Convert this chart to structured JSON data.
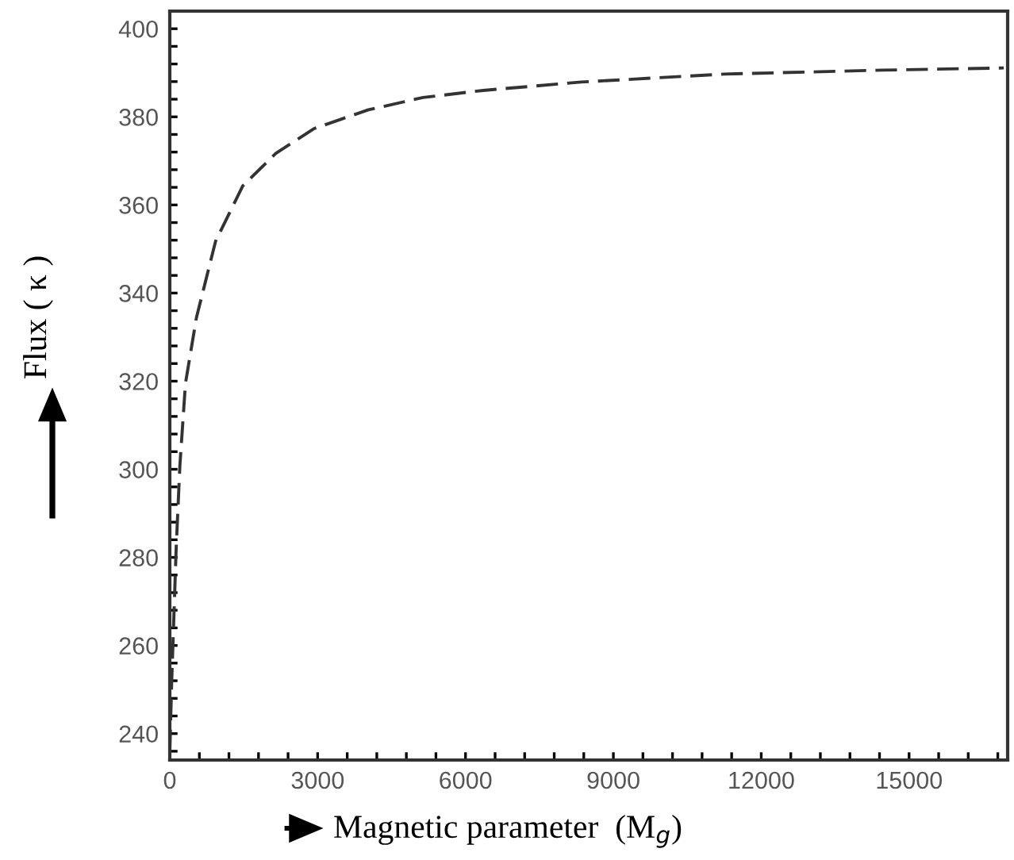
{
  "chart_data": {
    "type": "line",
    "xlabel": "Magnetic parameter  (M$_{g}$)",
    "ylabel": "Flux ( κ )",
    "xlim": [
      0,
      17000
    ],
    "ylim": [
      234,
      404
    ],
    "xticks": [
      0,
      {
        "value": 600,
        "label": null
      },
      {
        "value": 1200,
        "label": null
      },
      {
        "value": 1800,
        "label": null
      },
      {
        "value": 2400,
        "label": null
      },
      3000,
      {
        "value": 3600,
        "label": null
      },
      {
        "value": 4200,
        "label": null
      },
      {
        "value": 4800,
        "label": null
      },
      {
        "value": 5400,
        "label": null
      },
      6000,
      {
        "value": 6600,
        "label": null
      },
      {
        "value": 7200,
        "label": null
      },
      {
        "value": 7800,
        "label": null
      },
      {
        "value": 8400,
        "label": null
      },
      9000,
      {
        "value": 9600,
        "label": null
      },
      {
        "value": 10200,
        "label": null
      },
      {
        "value": 10800,
        "label": null
      },
      {
        "value": 11400,
        "label": null
      },
      12000,
      {
        "value": 12600,
        "label": null
      },
      {
        "value": 13200,
        "label": null
      },
      {
        "value": 13800,
        "label": null
      },
      {
        "value": 14400,
        "label": null
      },
      15000,
      {
        "value": 15600,
        "label": null
      },
      {
        "value": 16200,
        "label": null
      },
      {
        "value": 16800,
        "label": null
      }
    ],
    "yticks": [
      {
        "value": 236,
        "label": null
      },
      240,
      {
        "value": 244,
        "label": null
      },
      {
        "value": 248,
        "label": null
      },
      {
        "value": 252,
        "label": null
      },
      {
        "value": 256,
        "label": null
      },
      260,
      {
        "value": 264,
        "label": null
      },
      {
        "value": 268,
        "label": null
      },
      {
        "value": 272,
        "label": null
      },
      {
        "value": 276,
        "label": null
      },
      280,
      {
        "value": 284,
        "label": null
      },
      {
        "value": 288,
        "label": null
      },
      {
        "value": 292,
        "label": null
      },
      {
        "value": 296,
        "label": null
      },
      300,
      {
        "value": 304,
        "label": null
      },
      {
        "value": 308,
        "label": null
      },
      {
        "value": 312,
        "label": null
      },
      {
        "value": 316,
        "label": null
      },
      320,
      {
        "value": 324,
        "label": null
      },
      {
        "value": 328,
        "label": null
      },
      {
        "value": 332,
        "label": null
      },
      {
        "value": 336,
        "label": null
      },
      340,
      {
        "value": 344,
        "label": null
      },
      {
        "value": 348,
        "label": null
      },
      {
        "value": 352,
        "label": null
      },
      {
        "value": 356,
        "label": null
      },
      360,
      {
        "value": 364,
        "label": null
      },
      {
        "value": 368,
        "label": null
      },
      {
        "value": 372,
        "label": null
      },
      {
        "value": 376,
        "label": null
      },
      380,
      {
        "value": 384,
        "label": null
      },
      {
        "value": 388,
        "label": null
      },
      {
        "value": 392,
        "label": null
      },
      {
        "value": 396,
        "label": null
      },
      400
    ],
    "grid": false,
    "legend": false,
    "marker": "none",
    "line_style": "dashed",
    "series": [
      {
        "color": "#333333",
        "x": [
          0,
          40,
          130,
          205,
          318,
          540,
          930,
          1480,
          2150,
          2920,
          4030,
          5140,
          6360,
          8350,
          11240,
          14460,
          16920
        ],
        "values": [
          236,
          252.4,
          282.2,
          300.9,
          319.5,
          334.4,
          351.8,
          364.3,
          371.7,
          377.3,
          381.6,
          384.4,
          386.0,
          387.9,
          389.7,
          390.6,
          391.1
        ]
      }
    ]
  }
}
